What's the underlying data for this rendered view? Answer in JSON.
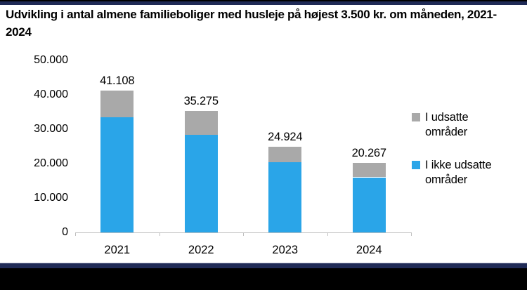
{
  "title": "Udvikling i antal almene familieboliger med husleje på højest 3.500 kr. om måneden, 2021-2024",
  "colors": {
    "blue": "#2AA5E8",
    "gray": "#A9A9A9",
    "navy_border": "#1F2A56",
    "axis_line": "#BFBFBF",
    "text": "#000000"
  },
  "chart_data": {
    "type": "bar",
    "stacked": true,
    "title": "Udvikling i antal almene familieboliger med husleje på højest 3.500 kr. om måneden, 2021-2024",
    "categories": [
      "2021",
      "2022",
      "2023",
      "2024"
    ],
    "series": [
      {
        "name": "I ikke udsatte områder",
        "color_key": "blue",
        "values": [
          33500,
          28400,
          20400,
          16000
        ]
      },
      {
        "name": "I udsatte områder",
        "color_key": "gray",
        "values": [
          7608,
          6875,
          4524,
          4267
        ]
      }
    ],
    "totals": [
      41108,
      35275,
      24924,
      20267
    ],
    "total_labels": [
      "41.108",
      "35.275",
      "24.924",
      "20.267"
    ],
    "xlabel": "",
    "ylabel": "",
    "ylim": [
      0,
      50000
    ],
    "yticks": [
      0,
      10000,
      20000,
      30000,
      40000,
      50000
    ],
    "ytick_labels": [
      "0",
      "10.000",
      "20.000",
      "30.000",
      "40.000",
      "50.000"
    ],
    "grid": false,
    "legend_position": "right",
    "legend": [
      {
        "label": "I udsatte områder",
        "color_key": "gray"
      },
      {
        "label": "I ikke udsatte områder",
        "color_key": "blue"
      }
    ]
  }
}
